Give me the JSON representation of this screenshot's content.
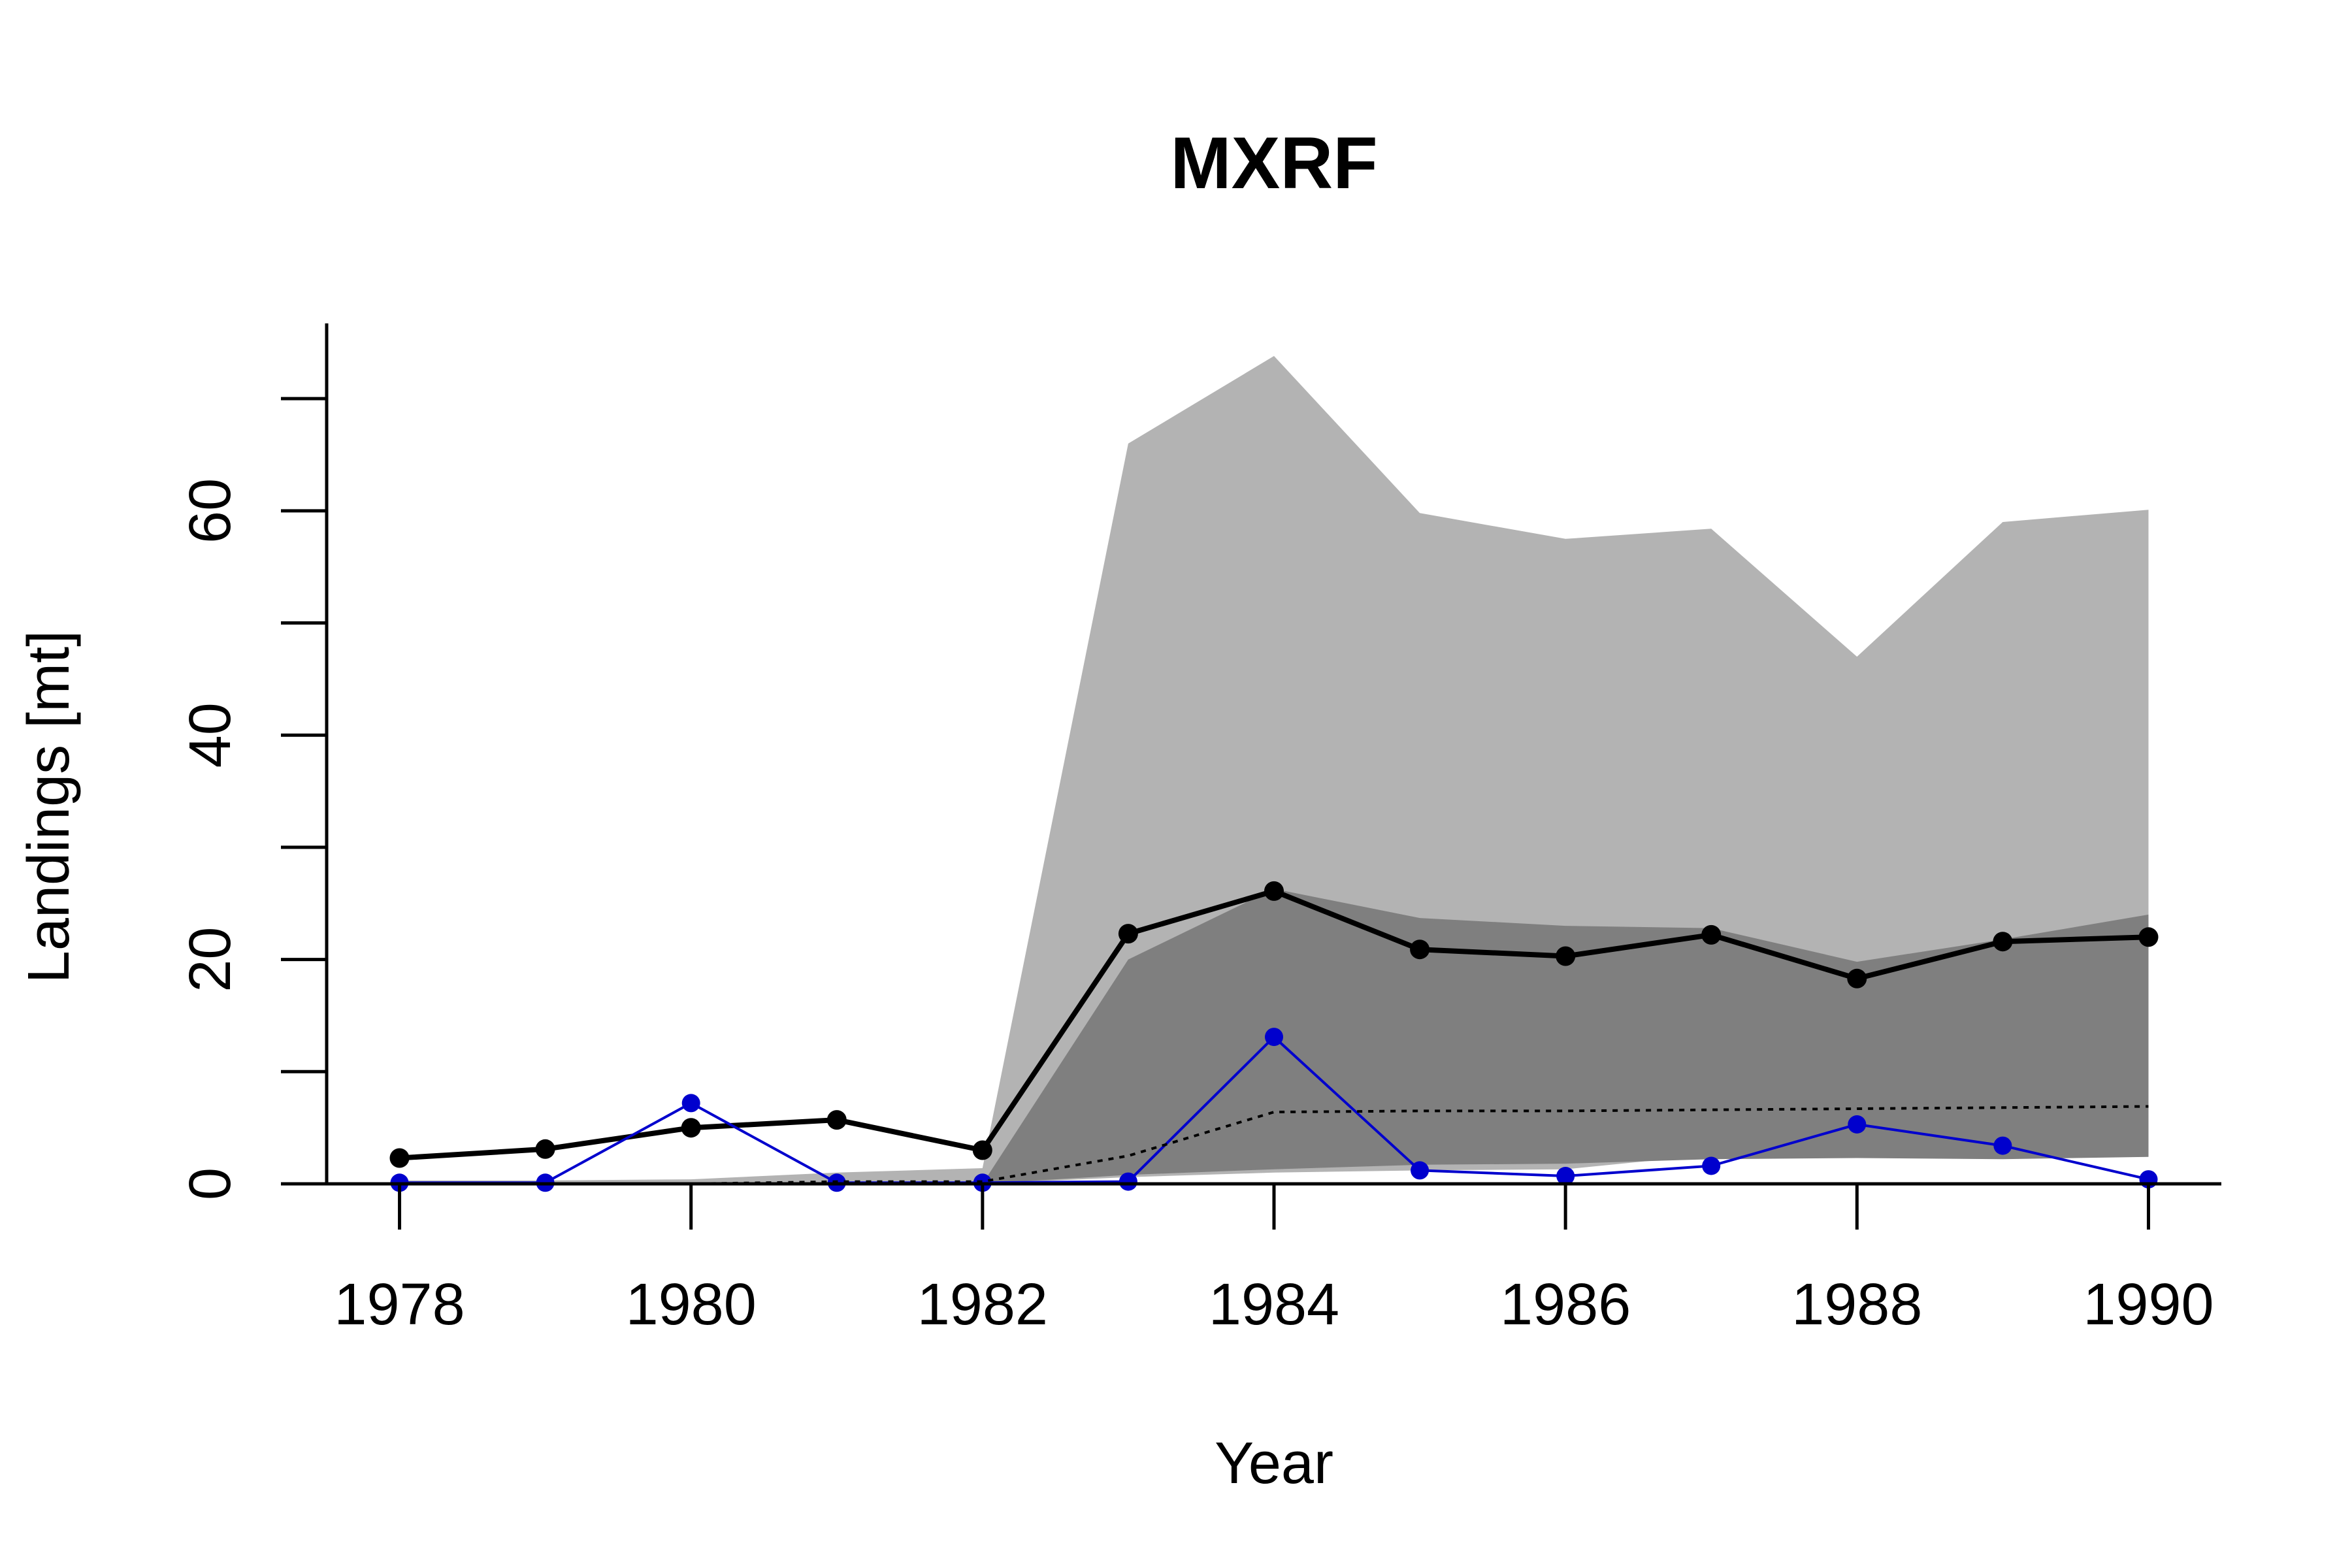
{
  "chart_data": {
    "type": "line",
    "title": "MXRF",
    "xlabel": "Year",
    "ylabel": "Landings [mt]",
    "xlim": [
      1977.5,
      1990.5
    ],
    "ylim": [
      0,
      77
    ],
    "x_ticks": [
      1978,
      1980,
      1982,
      1984,
      1986,
      1988,
      1990
    ],
    "y_ticks": [
      0,
      10,
      20,
      30,
      40,
      50,
      60,
      70
    ],
    "y_tick_labels": [
      "0",
      "20",
      "40",
      "60"
    ],
    "y_tick_label_values": [
      0,
      20,
      40,
      60
    ],
    "grid": false,
    "legend": "none",
    "x": [
      1978,
      1979,
      1980,
      1981,
      1982,
      1983,
      1984,
      1985,
      1986,
      1987,
      1988,
      1989,
      1990
    ],
    "bands": [
      {
        "color": "#b3b3b3",
        "lower": [
          0,
          0,
          0,
          0,
          0,
          0.6,
          1.0,
          1.2,
          1.3,
          2.6,
          2.9,
          2.7,
          2.8
        ],
        "upper": [
          0.3,
          0.3,
          0.4,
          1.0,
          1.4,
          66.0,
          73.8,
          59.8,
          57.5,
          58.4,
          47.0,
          59.0,
          60.1
        ]
      },
      {
        "color": "#7f7f7f",
        "lower": [
          0,
          0,
          0,
          0,
          0,
          0.8,
          1.3,
          1.7,
          1.8,
          2.2,
          2.3,
          2.2,
          2.4
        ],
        "upper": [
          0,
          0,
          0,
          0,
          0,
          20.0,
          26.3,
          23.7,
          23.0,
          22.8,
          19.8,
          21.8,
          24.0
        ]
      }
    ],
    "series": [
      {
        "color": "#000000",
        "style": "solid",
        "markers": true,
        "values": [
          2.3,
          3.1,
          5.0,
          5.7,
          3.0,
          22.3,
          26.1,
          20.9,
          20.3,
          22.2,
          18.3,
          21.6,
          22.0
        ]
      },
      {
        "color": "#0000cd",
        "style": "solid",
        "markers": true,
        "values": [
          0.1,
          0.1,
          7.2,
          0.1,
          0.1,
          0.2,
          13.1,
          1.2,
          0.7,
          1.6,
          5.3,
          3.4,
          0.4
        ]
      },
      {
        "color": "#000000",
        "style": "dotted",
        "markers": false,
        "values": [
          0,
          0,
          0,
          0.2,
          0.2,
          2.5,
          6.4,
          6.5,
          6.5,
          6.6,
          6.7,
          6.8,
          6.9
        ]
      }
    ]
  }
}
